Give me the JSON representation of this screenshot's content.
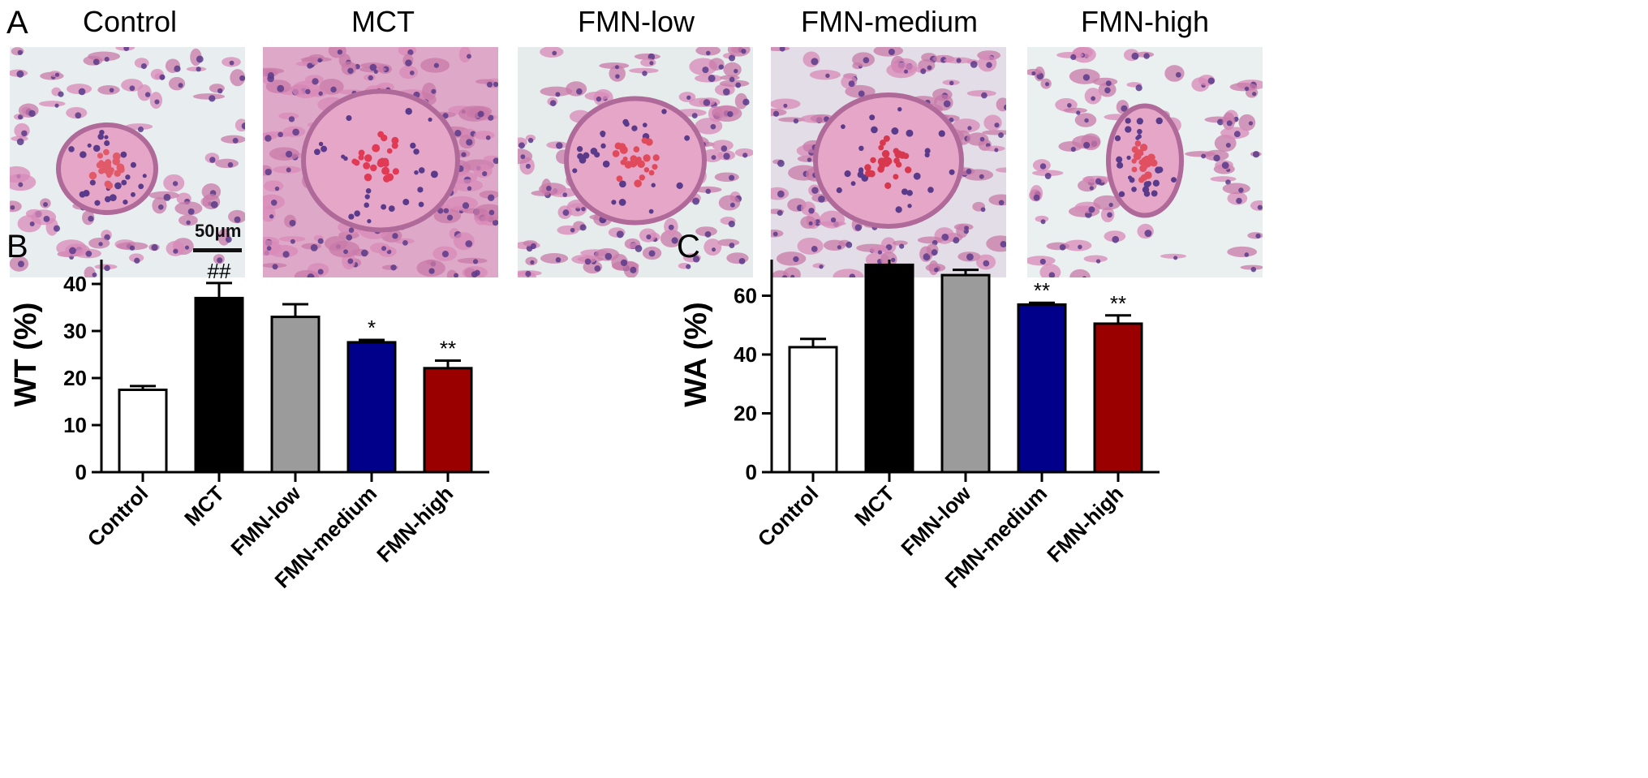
{
  "panel_a": {
    "letter": "A",
    "images": [
      {
        "label": "Control",
        "scale_label": "50μm",
        "bg": "#e8eef0",
        "lumen": "#e05a6a"
      },
      {
        "label": "MCT",
        "scale_label": "",
        "bg": "#dea8c8",
        "lumen": "#e03a55"
      },
      {
        "label": "FMN-low",
        "scale_label": "",
        "bg": "#e6ecec",
        "lumen": "#e04a5a"
      },
      {
        "label": "FMN-medium",
        "scale_label": "",
        "bg": "#e2dde6",
        "lumen": "#d8384d"
      },
      {
        "label": "FMN-high",
        "scale_label": "",
        "bg": "#eaeff0",
        "lumen": "#e05060"
      }
    ]
  },
  "chart_data": [
    {
      "type": "bar",
      "panel": "B",
      "categories": [
        "Control",
        "MCT",
        "FMN-low",
        "FMN-medium",
        "FMN-high"
      ],
      "values": [
        17.5,
        37,
        33,
        27.6,
        22.1
      ],
      "errors": [
        0.8,
        3.2,
        2.7,
        0.5,
        1.6
      ],
      "significance": [
        "",
        "##",
        "",
        "*",
        "**"
      ],
      "colors": [
        "#ffffff",
        "#000000",
        "#9b9b9b",
        "#00008b",
        "#9b0000"
      ],
      "ylabel": "WT  (%)",
      "xlabel": "",
      "ylim": [
        0,
        50
      ],
      "yticks": [
        0,
        10,
        20,
        30,
        40,
        50
      ],
      "grid": false
    },
    {
      "type": "bar",
      "panel": "C",
      "categories": [
        "Control",
        "MCT",
        "FMN-low",
        "FMN-medium",
        "FMN-high"
      ],
      "values": [
        42.5,
        70.5,
        67,
        57,
        50.5
      ],
      "errors": [
        2.8,
        2.8,
        1.8,
        0.6,
        2.8
      ],
      "significance": [
        "",
        "##",
        "",
        "**",
        "**"
      ],
      "colors": [
        "#ffffff",
        "#000000",
        "#9b9b9b",
        "#00008b",
        "#9b0000"
      ],
      "ylabel": "WA  (%)",
      "xlabel": "",
      "ylim": [
        0,
        80
      ],
      "yticks": [
        0,
        20,
        40,
        60,
        80
      ],
      "grid": false
    }
  ]
}
